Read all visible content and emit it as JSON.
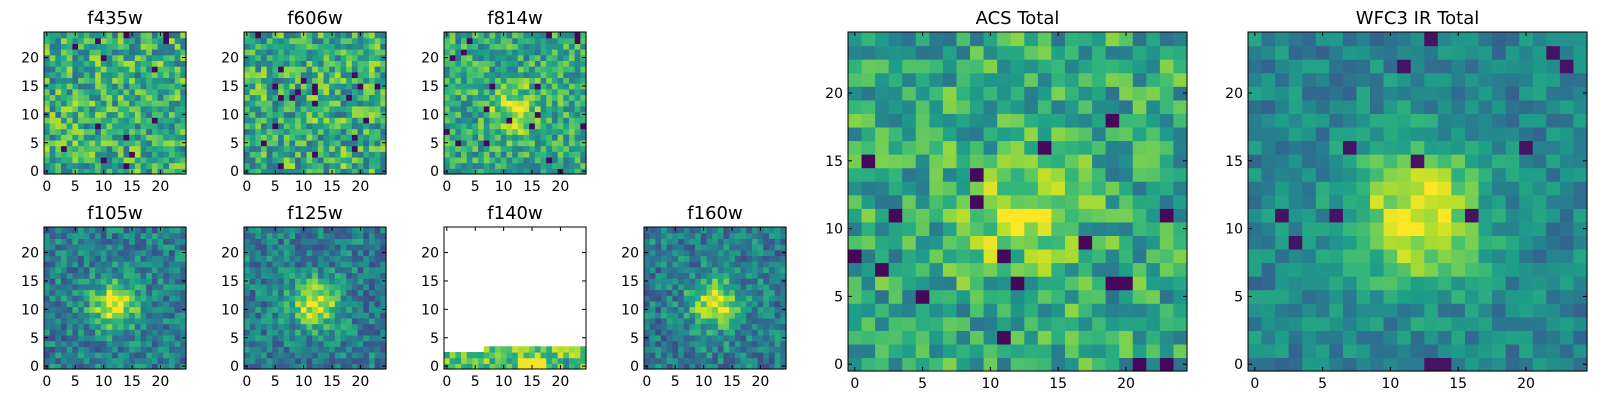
{
  "chart_data": [
    {
      "type": "heatmap",
      "title": "f435w",
      "grid": false,
      "xlim": [
        0,
        25
      ],
      "ylim": [
        0,
        25
      ],
      "xticks": [
        0,
        5,
        10,
        15,
        20
      ],
      "yticks": [
        0,
        5,
        10,
        15,
        20
      ],
      "texture": "noise",
      "seed": 11
    },
    {
      "type": "heatmap",
      "title": "f606w",
      "grid": false,
      "xlim": [
        0,
        25
      ],
      "ylim": [
        0,
        25
      ],
      "xticks": [
        0,
        5,
        10,
        15,
        20
      ],
      "yticks": [
        0,
        5,
        10,
        15,
        20
      ],
      "texture": "noise",
      "seed": 23
    },
    {
      "type": "heatmap",
      "title": "f814w",
      "grid": false,
      "xlim": [
        0,
        25
      ],
      "ylim": [
        0,
        25
      ],
      "xticks": [
        0,
        5,
        10,
        15,
        20
      ],
      "yticks": [
        0,
        5,
        10,
        15,
        20
      ],
      "texture": "noise-source",
      "seed": 37
    },
    {
      "type": "heatmap",
      "title": "f105w",
      "grid": false,
      "xlim": [
        0,
        25
      ],
      "ylim": [
        0,
        25
      ],
      "xticks": [
        0,
        5,
        10,
        15,
        20
      ],
      "yticks": [
        0,
        5,
        10,
        15,
        20
      ],
      "texture": "source",
      "seed": 41
    },
    {
      "type": "heatmap",
      "title": "f125w",
      "grid": false,
      "xlim": [
        0,
        25
      ],
      "ylim": [
        0,
        25
      ],
      "xticks": [
        0,
        5,
        10,
        15,
        20
      ],
      "yticks": [
        0,
        5,
        10,
        15,
        20
      ],
      "texture": "source",
      "seed": 53
    },
    {
      "type": "heatmap",
      "title": "f140w",
      "grid": false,
      "xlim": [
        0,
        25
      ],
      "ylim": [
        0,
        25
      ],
      "xticks": [
        0,
        5,
        10,
        15,
        20
      ],
      "yticks": [
        0,
        5,
        10,
        15,
        20
      ],
      "texture": "strip",
      "seed": 67
    },
    {
      "type": "heatmap",
      "title": "f160w",
      "grid": false,
      "xlim": [
        0,
        25
      ],
      "ylim": [
        0,
        25
      ],
      "xticks": [
        0,
        5,
        10,
        15,
        20
      ],
      "yticks": [
        0,
        5,
        10,
        15,
        20
      ],
      "texture": "source",
      "seed": 79
    },
    {
      "type": "heatmap",
      "title": "ACS Total",
      "grid": false,
      "xlim": [
        0,
        25
      ],
      "ylim": [
        0,
        25
      ],
      "xticks": [
        0,
        5,
        10,
        15,
        20
      ],
      "yticks": [
        0,
        5,
        10,
        15,
        20
      ],
      "texture": "noise-source",
      "seed": 83
    },
    {
      "type": "heatmap",
      "title": "WFC3 IR Total",
      "grid": false,
      "xlim": [
        0,
        25
      ],
      "ylim": [
        0,
        25
      ],
      "xticks": [
        0,
        5,
        10,
        15,
        20
      ],
      "yticks": [
        0,
        5,
        10,
        15,
        20
      ],
      "texture": "source-strong",
      "seed": 97
    }
  ]
}
